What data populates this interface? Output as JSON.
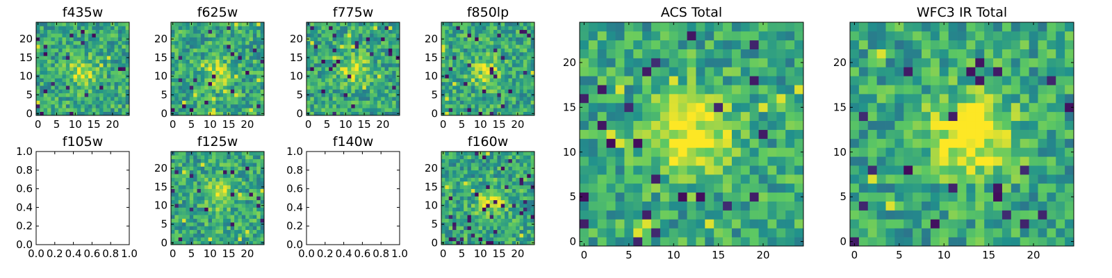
{
  "chart_data": [
    {
      "type": "heatmap",
      "title": "f435w",
      "xticks": [
        "0",
        "5",
        "10",
        "15",
        "20"
      ],
      "yticks": [
        "0",
        "5",
        "10",
        "15",
        "20"
      ],
      "xlim": [
        -0.5,
        24.5
      ],
      "ylim": [
        -0.5,
        24.5
      ],
      "grid": 25,
      "empty": false,
      "peak": [
        12,
        11
      ]
    },
    {
      "type": "heatmap",
      "title": "f625w",
      "xticks": [
        "0",
        "5",
        "10",
        "15",
        "20"
      ],
      "yticks": [
        "0",
        "5",
        "10",
        "15",
        "20"
      ],
      "xlim": [
        -0.5,
        24.5
      ],
      "ylim": [
        -0.5,
        24.5
      ],
      "grid": 25,
      "empty": false,
      "peak": [
        12,
        11
      ]
    },
    {
      "type": "heatmap",
      "title": "f775w",
      "xticks": [
        "0",
        "5",
        "10",
        "15",
        "20"
      ],
      "yticks": [
        "0",
        "5",
        "10",
        "15",
        "20"
      ],
      "xlim": [
        -0.5,
        24.5
      ],
      "ylim": [
        -0.5,
        24.5
      ],
      "grid": 25,
      "empty": false,
      "peak": [
        12,
        12
      ]
    },
    {
      "type": "heatmap",
      "title": "f850lp",
      "xticks": [
        "0",
        "5",
        "10",
        "15",
        "20"
      ],
      "yticks": [
        "0",
        "5",
        "10",
        "15",
        "20"
      ],
      "xlim": [
        -0.5,
        24.5
      ],
      "ylim": [
        -0.5,
        24.5
      ],
      "grid": 25,
      "empty": false,
      "peak": [
        12,
        11
      ]
    },
    {
      "type": "line",
      "title": "f105w",
      "xticks": [
        "0.0",
        "0.2",
        "0.4",
        "0.6",
        "0.8",
        "1.0"
      ],
      "yticks": [
        "0.0",
        "0.2",
        "0.4",
        "0.6",
        "0.8",
        "1.0"
      ],
      "xlim": [
        0,
        1
      ],
      "ylim": [
        0,
        1
      ],
      "empty": true
    },
    {
      "type": "heatmap",
      "title": "f125w",
      "xticks": [
        "0",
        "5",
        "10",
        "15",
        "20"
      ],
      "yticks": [
        "0",
        "5",
        "10",
        "15",
        "20"
      ],
      "xlim": [
        -0.5,
        24.5
      ],
      "ylim": [
        -0.5,
        24.5
      ],
      "grid": 25,
      "empty": false,
      "peak": [
        13,
        13
      ]
    },
    {
      "type": "line",
      "title": "f140w",
      "xticks": [
        "0.0",
        "0.2",
        "0.4",
        "0.6",
        "0.8",
        "1.0"
      ],
      "yticks": [
        "0.0",
        "0.2",
        "0.4",
        "0.6",
        "0.8",
        "1.0"
      ],
      "xlim": [
        0,
        1
      ],
      "ylim": [
        0,
        1
      ],
      "empty": true
    },
    {
      "type": "heatmap",
      "title": "f160w",
      "xticks": [
        "0",
        "5",
        "10",
        "15",
        "20"
      ],
      "yticks": [
        "0",
        "5",
        "10",
        "15",
        "20"
      ],
      "xlim": [
        -0.5,
        24.5
      ],
      "ylim": [
        -0.5,
        24.5
      ],
      "grid": 25,
      "empty": false,
      "peak": [
        13,
        11
      ]
    },
    {
      "type": "heatmap",
      "title": "ACS Total",
      "xticks": [
        "0",
        "5",
        "10",
        "15",
        "20"
      ],
      "yticks": [
        "0",
        "5",
        "10",
        "15",
        "20"
      ],
      "xlim": [
        -0.5,
        24.5
      ],
      "ylim": [
        -0.5,
        24.5
      ],
      "grid": 25,
      "empty": false,
      "peak": [
        12,
        12
      ]
    },
    {
      "type": "heatmap",
      "title": "WFC3 IR Total",
      "xticks": [
        "0",
        "5",
        "10",
        "15",
        "20"
      ],
      "yticks": [
        "0",
        "5",
        "10",
        "15",
        "20"
      ],
      "xlim": [
        -0.5,
        24.5
      ],
      "ylim": [
        -0.5,
        24.5
      ],
      "grid": 25,
      "empty": false,
      "peak": [
        13,
        12
      ]
    }
  ],
  "colormap": [
    "#440154",
    "#3b528b",
    "#21918c",
    "#5ec962",
    "#fde725"
  ]
}
